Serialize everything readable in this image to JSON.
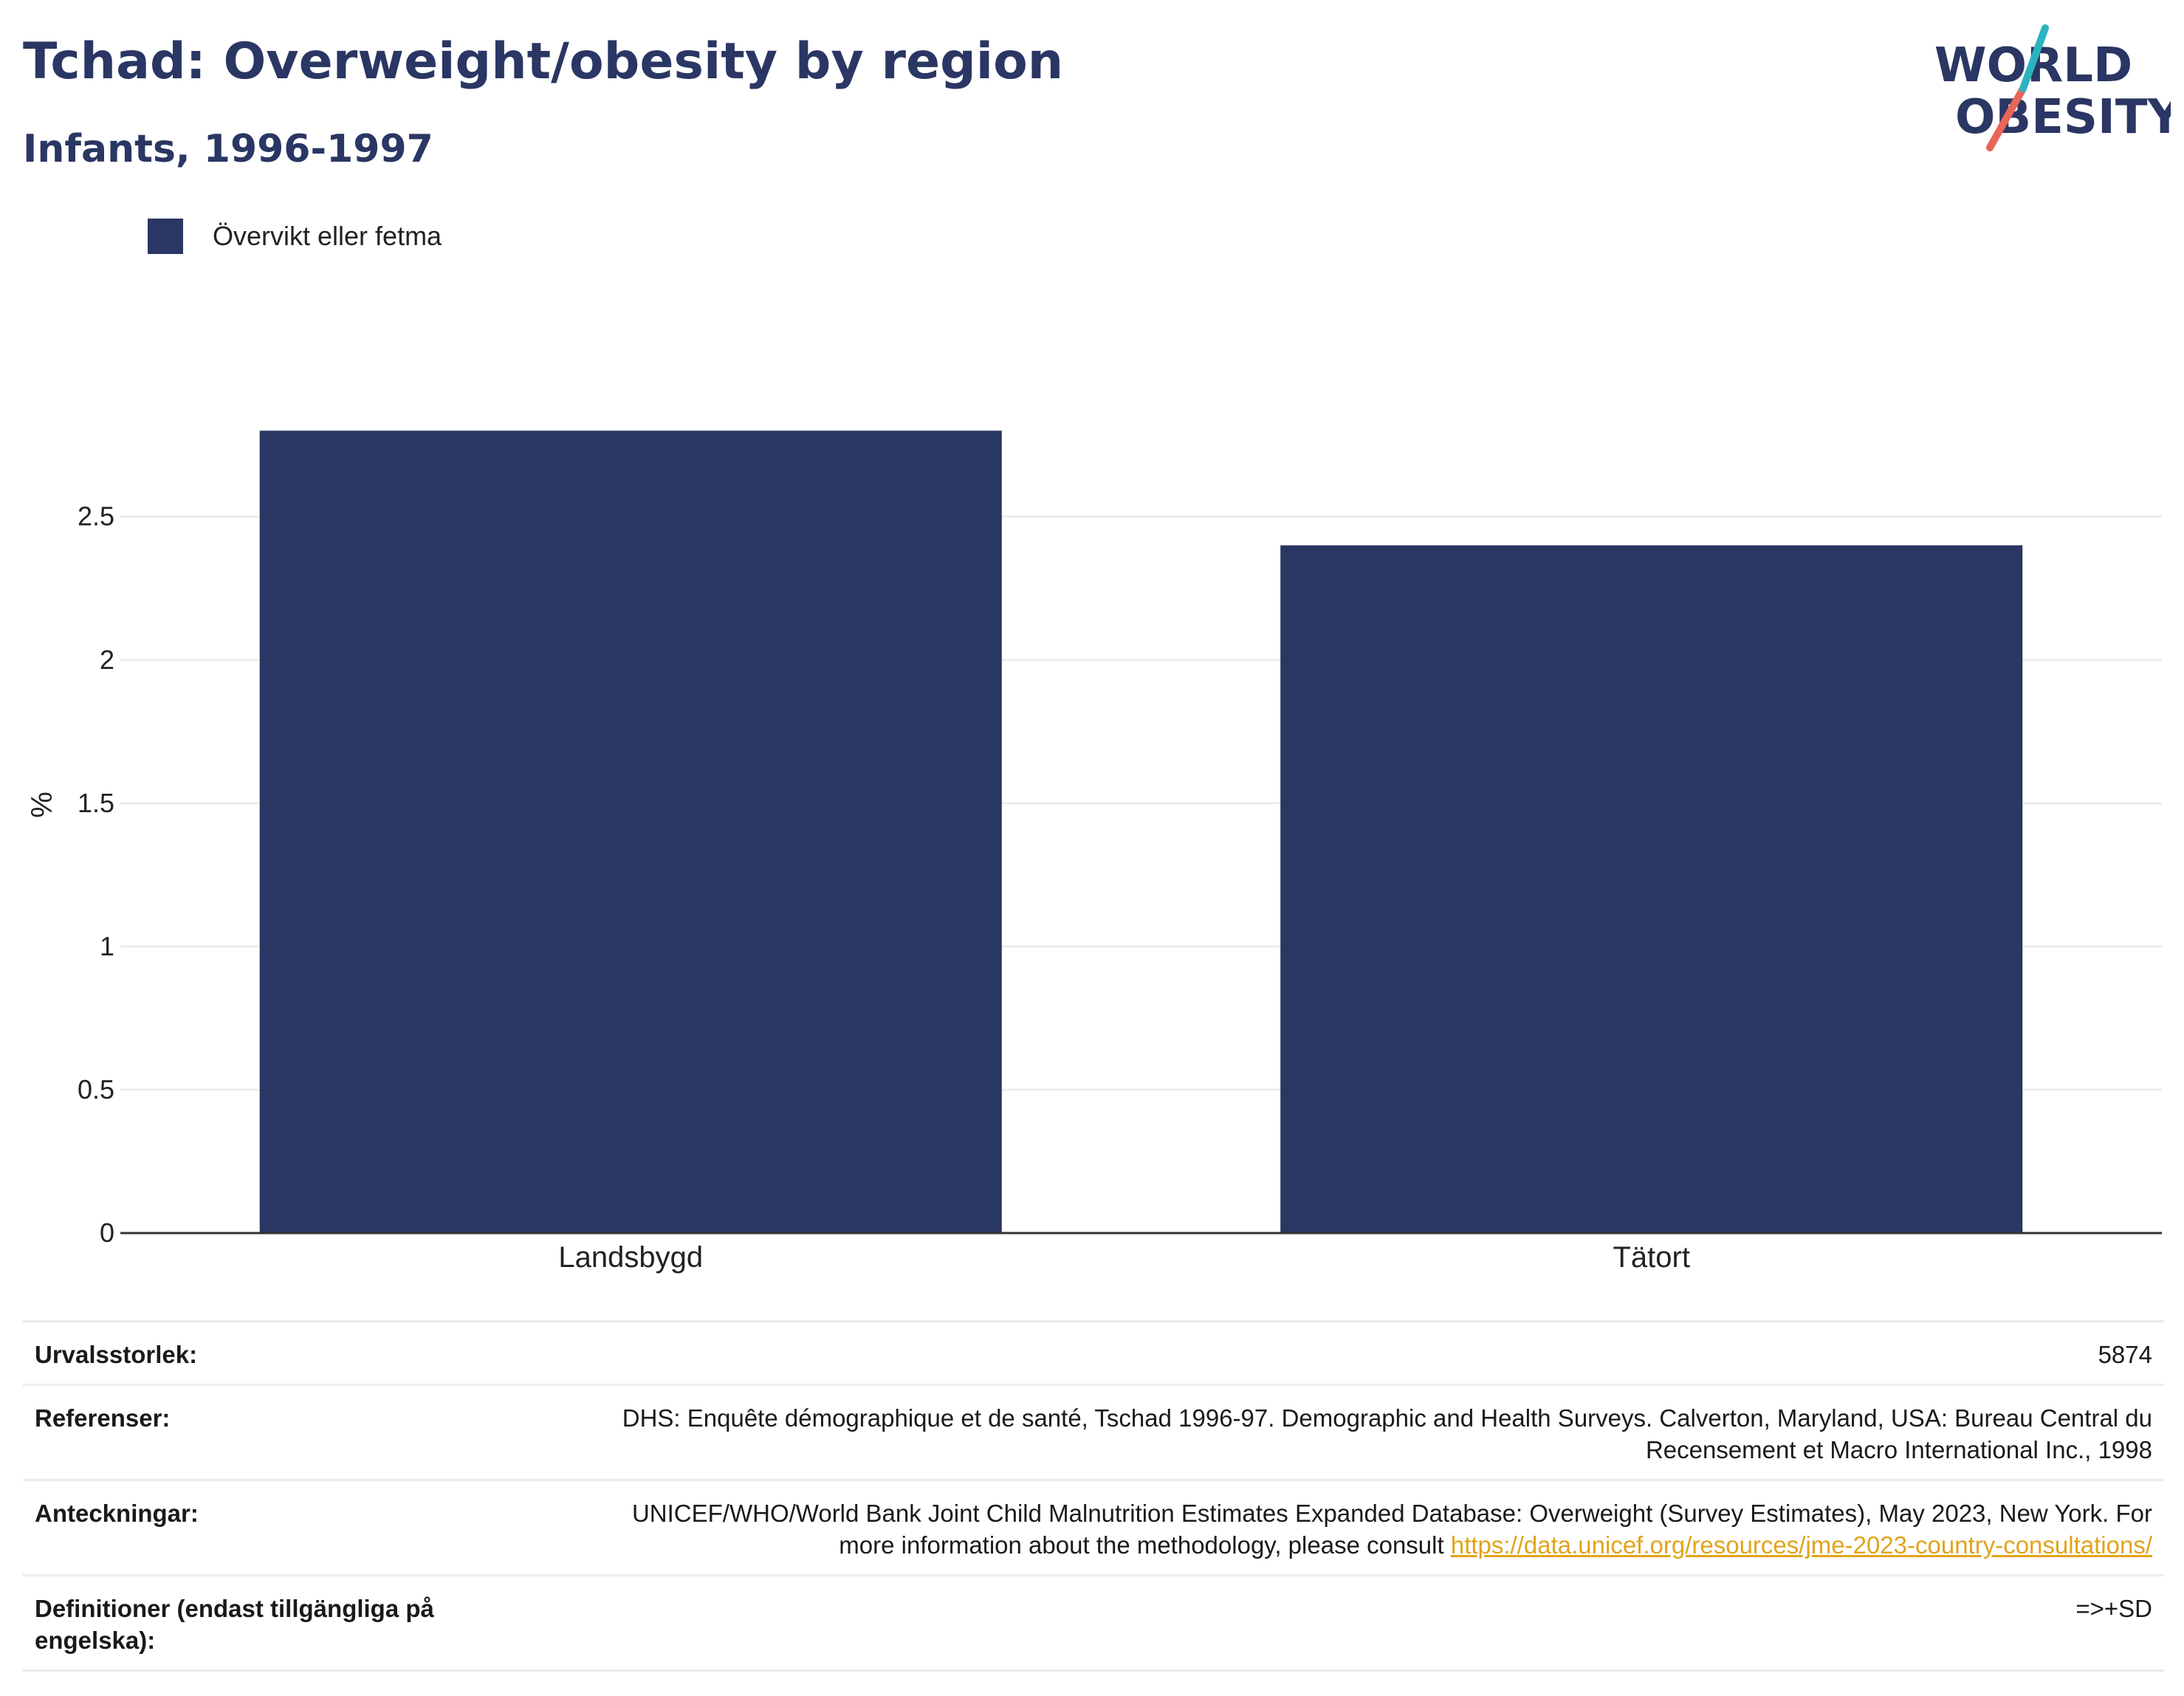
{
  "header": {
    "title": "Tchad: Overweight/obesity by region",
    "subtitle": "Infants, 1996-1997"
  },
  "logo": {
    "line1": "WORLD",
    "line2": "OBESITY",
    "colors": [
      "#2a3663",
      "#2bb3c0",
      "#e8655a"
    ]
  },
  "colors": {
    "bar": "#2a3663",
    "grid": "#ececec",
    "axis": "#333333",
    "link": "#e0a41a"
  },
  "chart_data": {
    "type": "bar",
    "categories": [
      "Landsbygd",
      "Tätort"
    ],
    "series": [
      {
        "name": "Övervikt eller fetma",
        "values": [
          2.8,
          2.4
        ]
      }
    ],
    "ylabel": "%",
    "ylim": [
      0,
      2.86
    ],
    "yticks": [
      0,
      0.5,
      1,
      1.5,
      2,
      2.5
    ],
    "ytick_labels": [
      "0",
      "0.5",
      "1",
      "1.5",
      "2",
      "2.5"
    ],
    "grid": true,
    "legend_position": "top-left"
  },
  "info": {
    "sample_size": {
      "label": "Urvalsstorlek:",
      "value": "5874"
    },
    "references": {
      "label": "Referenser:",
      "value": "DHS: Enquête démographique et de santé, Tschad 1996-97. Demographic and Health Surveys. Calverton, Maryland, USA: Bureau Central du Recensement et Macro International Inc., 1998"
    },
    "notes": {
      "label": "Anteckningar:",
      "value": "UNICEF/WHO/World Bank Joint Child Malnutrition Estimates Expanded Database: Overweight (Survey Estimates), May 2023, New York. For more information about the methodology, please consult",
      "link": "https://data.unicef.org/resources/jme-2023-country-consultations/"
    },
    "definitions": {
      "label": "Definitioner (endast tillgängliga på engelska):",
      "value": "=>+SD"
    }
  }
}
